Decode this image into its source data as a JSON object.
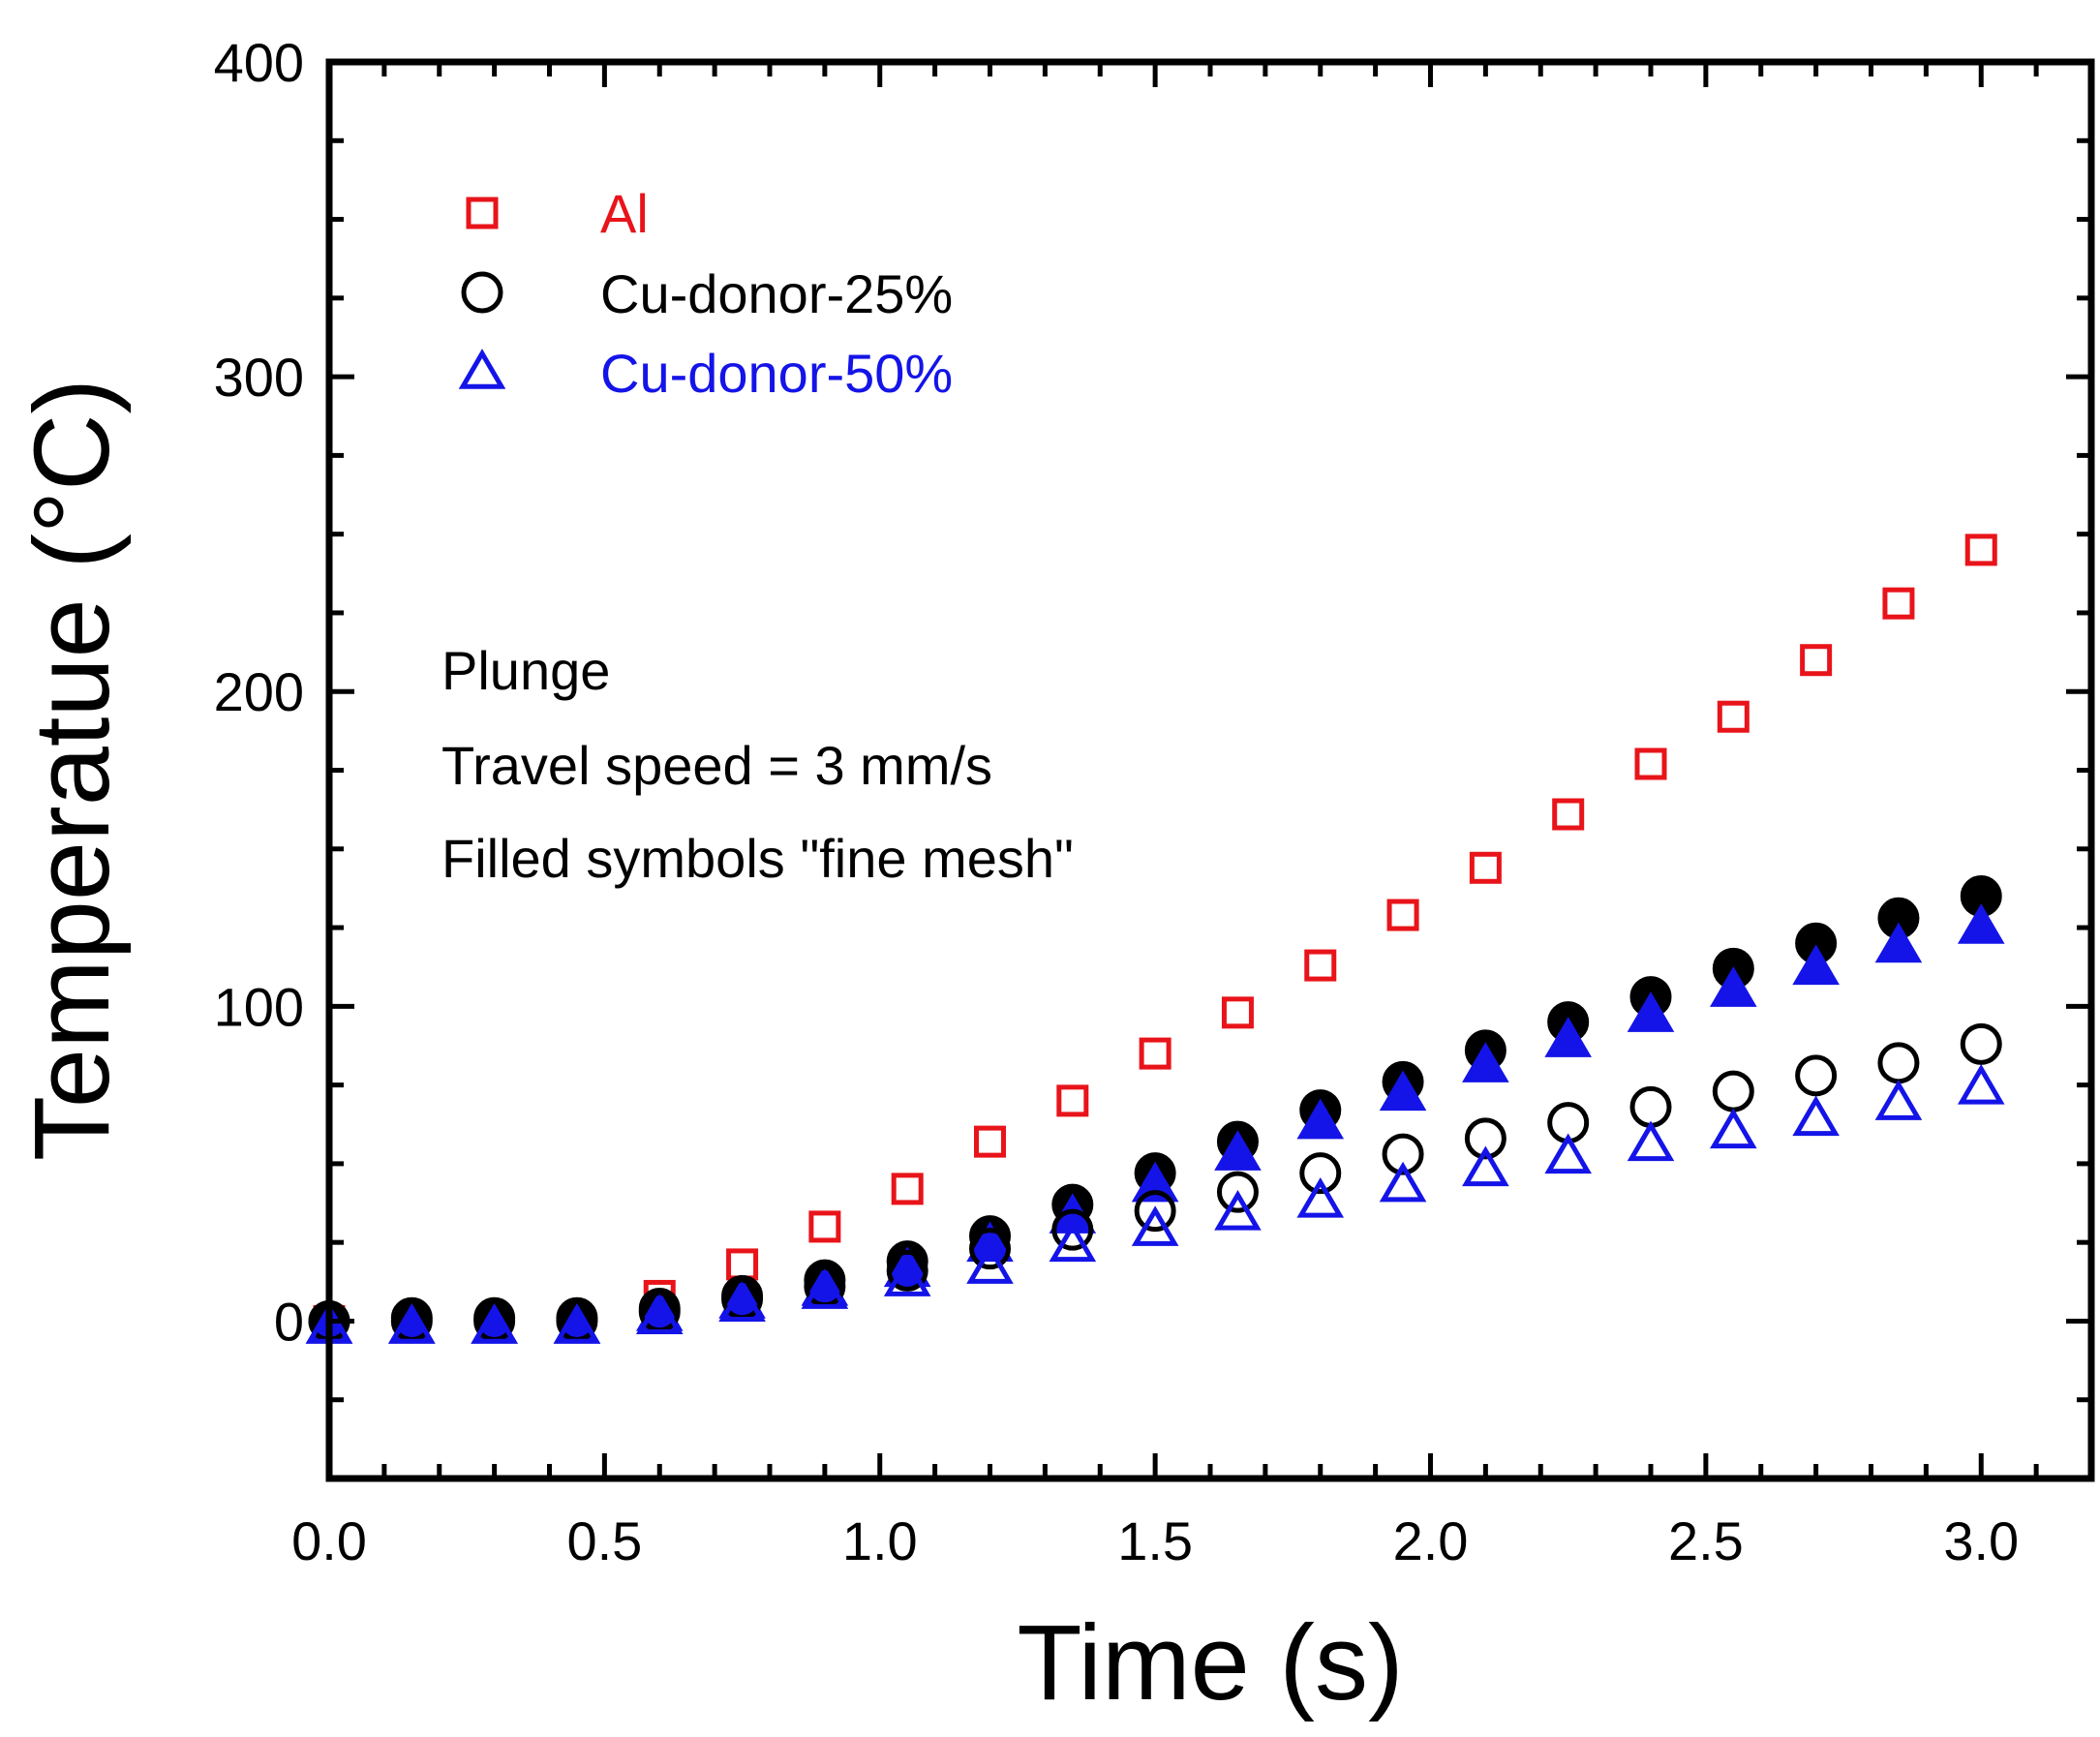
{
  "chart_data": {
    "type": "scatter",
    "xlabel": "Time (s)",
    "ylabel": "Temperatue (°C)",
    "xlim": [
      0.0,
      3.2
    ],
    "ylim": [
      -50,
      400
    ],
    "x_ticks": [
      "0.0",
      "0.5",
      "1.0",
      "1.5",
      "2.0",
      "2.5",
      "3.0"
    ],
    "x_tick_values": [
      0.0,
      0.5,
      1.0,
      1.5,
      2.0,
      2.5,
      3.0
    ],
    "y_ticks": [
      "0",
      "100",
      "200",
      "300",
      "400"
    ],
    "y_tick_values": [
      0,
      100,
      200,
      300,
      400
    ],
    "legend": [
      {
        "label": "Al",
        "marker": "square",
        "color": "#e8141a"
      },
      {
        "label": "Cu-donor-25%",
        "marker": "circle",
        "color": "#000000"
      },
      {
        "label": "Cu-donor-50%",
        "marker": "triangle",
        "color": "#1414e8"
      }
    ],
    "annotations": [
      "Plunge",
      "Travel speed = 3 mm/s",
      "Filled symbols \"fine mesh\""
    ],
    "series": [
      {
        "name": "Al",
        "marker": "square",
        "filled": false,
        "color": "#e8141a",
        "x": [
          0.0,
          0.15,
          0.3,
          0.45,
          0.6,
          0.75,
          0.9,
          1.05,
          1.2,
          1.35,
          1.5,
          1.65,
          1.8,
          1.95,
          2.1,
          2.25,
          2.4,
          2.55,
          2.7,
          2.85,
          3.0
        ],
        "y": [
          0,
          0,
          0,
          0,
          8,
          18,
          30,
          42,
          57,
          70,
          85,
          98,
          113,
          129,
          144,
          161,
          177,
          192,
          210,
          228,
          245
        ]
      },
      {
        "name": "Cu-donor-25% (fine mesh)",
        "marker": "circle",
        "filled": true,
        "color": "#000000",
        "x": [
          0.0,
          0.15,
          0.3,
          0.45,
          0.6,
          0.75,
          0.9,
          1.05,
          1.2,
          1.35,
          1.5,
          1.65,
          1.8,
          1.95,
          2.1,
          2.25,
          2.4,
          2.55,
          2.7,
          2.85,
          3.0
        ],
        "y": [
          0,
          1,
          1,
          1,
          4,
          8,
          13,
          19,
          27,
          37,
          47,
          57,
          67,
          76,
          86,
          95,
          103,
          112,
          120,
          128,
          135
        ]
      },
      {
        "name": "Cu-donor-25%",
        "marker": "circle",
        "filled": false,
        "color": "#000000",
        "x": [
          0.0,
          0.15,
          0.3,
          0.45,
          0.6,
          0.75,
          0.9,
          1.05,
          1.2,
          1.35,
          1.5,
          1.65,
          1.8,
          1.95,
          2.1,
          2.25,
          2.4,
          2.55,
          2.7,
          2.85,
          3.0
        ],
        "y": [
          0,
          0,
          0,
          0,
          3,
          7,
          11,
          16,
          23,
          29,
          35,
          41,
          47,
          53,
          58,
          63,
          68,
          73,
          78,
          82,
          88
        ]
      },
      {
        "name": "Cu-donor-50% (fine mesh)",
        "marker": "triangle",
        "filled": true,
        "color": "#1414e8",
        "x": [
          0.0,
          0.15,
          0.3,
          0.45,
          0.6,
          0.75,
          0.9,
          1.05,
          1.2,
          1.35,
          1.5,
          1.65,
          1.8,
          1.95,
          2.1,
          2.25,
          2.4,
          2.55,
          2.7,
          2.85,
          3.0
        ],
        "y": [
          -2,
          -2,
          -2,
          -2,
          2,
          6,
          10,
          16,
          24,
          33,
          43,
          53,
          63,
          72,
          81,
          89,
          97,
          105,
          112,
          119,
          125
        ]
      },
      {
        "name": "Cu-donor-50%",
        "marker": "triangle",
        "filled": false,
        "color": "#1414e8",
        "x": [
          0.0,
          0.15,
          0.3,
          0.45,
          0.6,
          0.75,
          0.9,
          1.05,
          1.2,
          1.35,
          1.5,
          1.65,
          1.8,
          1.95,
          2.1,
          2.25,
          2.4,
          2.55,
          2.7,
          2.85,
          3.0
        ],
        "y": [
          -2,
          -2,
          -2,
          -2,
          1,
          5,
          9,
          13,
          17,
          24,
          29,
          34,
          38,
          43,
          48,
          52,
          56,
          60,
          64,
          69,
          74
        ]
      }
    ]
  }
}
